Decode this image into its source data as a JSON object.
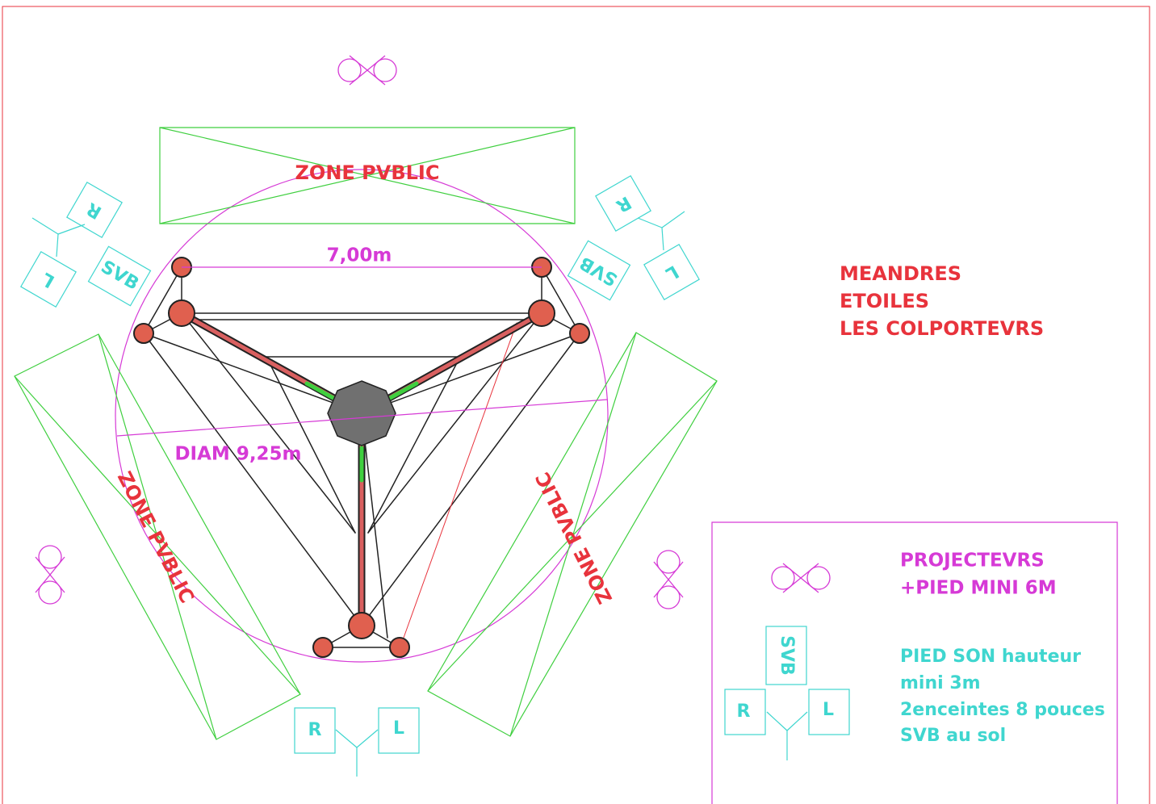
{
  "zones": [
    "ZONE PVBLIC",
    "ZONE PVBLIC",
    "ZONE PVBLIC"
  ],
  "dimensions": {
    "width": "7,00m",
    "diameter": "DIAM 9,25m"
  },
  "title_lines": [
    "MEANDRES",
    "ETOILES",
    "LES COLPORTEVRS"
  ],
  "speakers": [
    {
      "r": "R",
      "l": "L",
      "sub": "SVB"
    },
    {
      "r": "R",
      "l": "L",
      "sub": "SVB"
    },
    {
      "r": "R",
      "l": "L"
    }
  ],
  "legend": {
    "projectors": [
      "PROJECTEVRS",
      "+PIED MINI 6M"
    ],
    "sound": {
      "sub": "SVB",
      "r": "R",
      "l": "L",
      "lines": [
        "PIED SON hauteur",
        "mini 3m",
        "2enceintes 8 pouces",
        "SVB au sol"
      ]
    }
  }
}
